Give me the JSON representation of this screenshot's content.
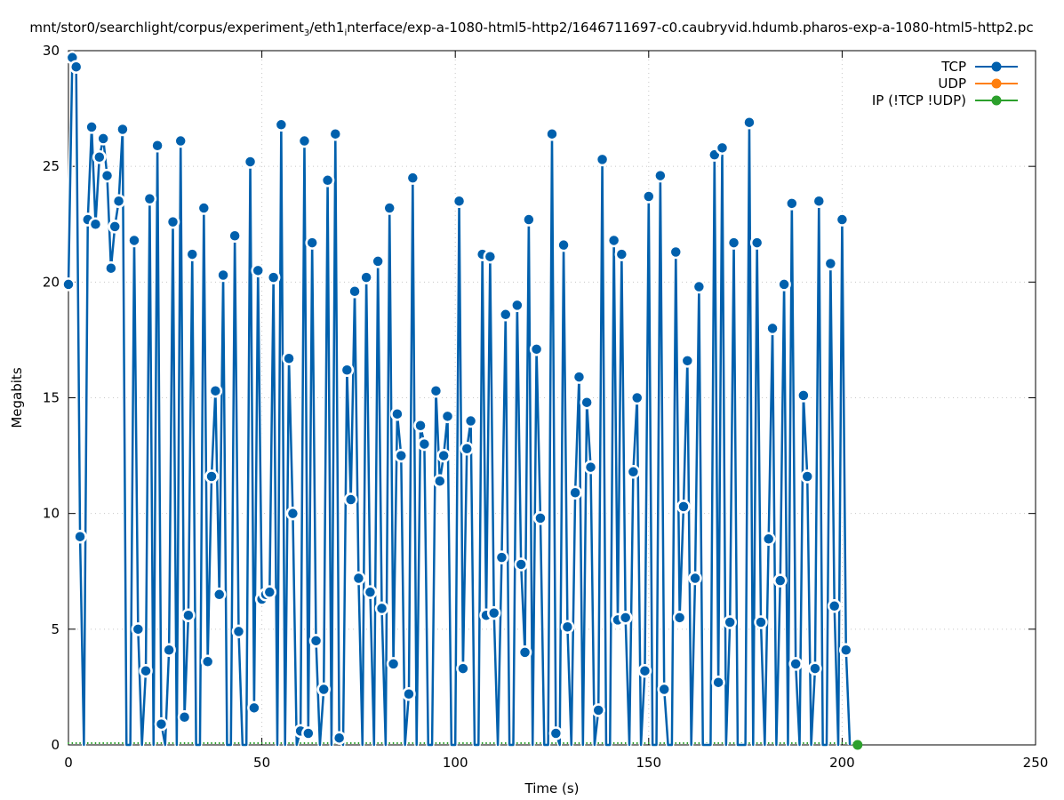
{
  "chart_data": {
    "type": "line",
    "title_parts": [
      {
        "text": "mnt/stor0/searchlight/corpus/experiment",
        "sub": false
      },
      {
        "text": "3",
        "sub": true
      },
      {
        "text": "/eth1",
        "sub": false
      },
      {
        "text": "i",
        "sub": true
      },
      {
        "text": "nterface/exp-a-1080-html5-http2/1646711697-c0.caubryvid.hdumb.pharos-exp-a-1080-html5-http2.pc",
        "sub": false
      }
    ],
    "xlabel": "Time (s)",
    "ylabel": "Megabits",
    "xlim": [
      0,
      250
    ],
    "ylim": [
      0,
      30
    ],
    "xticks": [
      "0",
      "50",
      "100",
      "150",
      "200",
      "250"
    ],
    "yticks": [
      "0",
      "5",
      "10",
      "15",
      "20",
      "25",
      "30"
    ],
    "grid": true,
    "legend_position": "top-right",
    "series": [
      {
        "name": "TCP",
        "color": "#0060ad",
        "x_start": 0,
        "x_step": 1,
        "values": [
          19.9,
          29.7,
          29.3,
          9.0,
          0,
          22.7,
          26.7,
          22.5,
          25.4,
          26.2,
          24.6,
          20.6,
          22.4,
          23.5,
          26.6,
          0,
          0,
          21.8,
          5.0,
          0,
          3.2,
          23.6,
          0,
          25.9,
          0.9,
          0,
          4.1,
          22.6,
          0,
          26.1,
          1.2,
          5.6,
          21.2,
          0,
          0,
          23.2,
          3.6,
          11.6,
          15.3,
          6.5,
          20.3,
          0,
          0,
          22.0,
          4.9,
          0,
          0,
          25.2,
          1.6,
          20.5,
          6.3,
          6.5,
          6.6,
          20.2,
          0,
          26.8,
          0,
          16.7,
          10.0,
          0,
          0.6,
          26.1,
          0.5,
          21.7,
          4.5,
          0,
          2.4,
          24.4,
          0,
          26.4,
          0.3,
          0,
          16.2,
          10.6,
          19.6,
          7.2,
          0,
          20.2,
          6.6,
          0,
          20.9,
          5.9,
          0,
          23.2,
          3.5,
          14.3,
          12.5,
          0,
          2.2,
          24.5,
          0,
          13.8,
          13.0,
          0,
          0,
          15.3,
          11.4,
          12.5,
          14.2,
          0,
          0,
          23.5,
          3.3,
          12.8,
          14.0,
          0,
          0,
          21.2,
          5.6,
          21.1,
          5.7,
          0,
          8.1,
          18.6,
          0,
          0,
          19.0,
          7.8,
          4.0,
          22.7,
          0,
          17.1,
          9.8,
          0,
          0,
          26.4,
          0.5,
          0,
          21.6,
          5.1,
          0,
          10.9,
          15.9,
          0,
          14.8,
          12.0,
          0,
          1.5,
          25.3,
          0,
          0,
          21.8,
          5.4,
          21.2,
          5.5,
          0,
          11.8,
          15.0,
          0,
          3.2,
          23.7,
          0,
          0,
          24.6,
          2.4,
          0,
          0,
          21.3,
          5.5,
          10.3,
          16.6,
          0,
          7.2,
          19.8,
          0,
          0,
          0,
          25.5,
          2.7,
          25.8,
          0,
          5.3,
          21.7,
          0,
          0,
          0,
          26.9,
          0,
          21.7,
          5.3,
          0,
          8.9,
          18.0,
          0,
          7.1,
          19.9,
          0,
          23.4,
          3.5,
          0,
          15.1,
          11.6,
          0,
          3.3,
          23.5,
          0,
          0,
          20.8,
          6.0,
          0,
          22.7,
          4.1,
          0
        ]
      },
      {
        "name": "UDP",
        "color": "#ff7f0e",
        "x_start": 0,
        "x_step": 1,
        "values": []
      },
      {
        "name": "IP (!TCP  !UDP)",
        "color": "#2ca02c",
        "x_start": 0,
        "x_step": 1,
        "values_constant": 0,
        "count": 205
      }
    ]
  }
}
